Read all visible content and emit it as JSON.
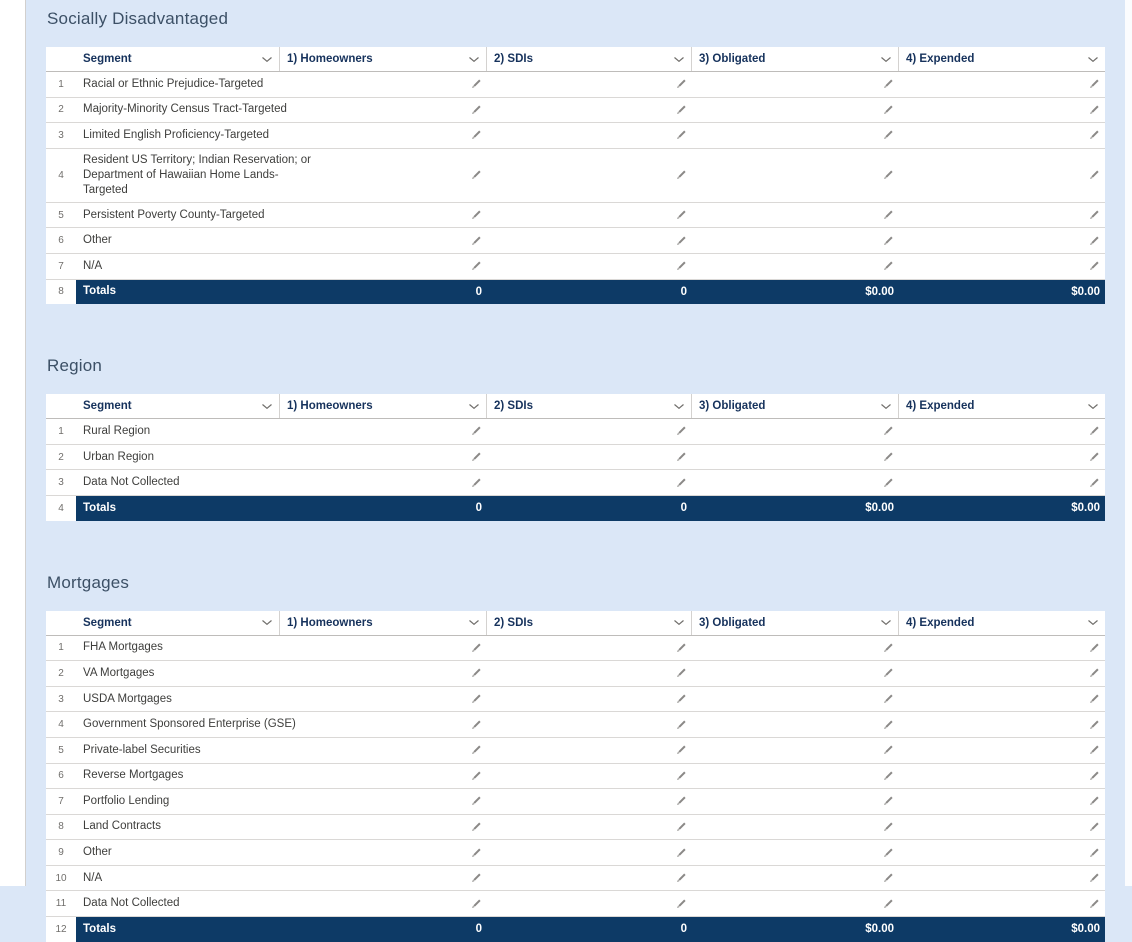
{
  "colors": {
    "page_background": "#dbe7f7",
    "totals_row_background": "#0d3a66",
    "header_text": "#16325c",
    "body_text": "#3e3e3c",
    "muted_text": "#706e6b"
  },
  "columns": [
    "Segment",
    "1) Homeowners",
    "2) SDIs",
    "3) Obligated",
    "4) Expended"
  ],
  "icons": {
    "column_menu": "chevron-down-icon",
    "cell_edit": "edit-pencil-icon"
  },
  "sections": [
    {
      "title": "Socially Disadvantaged",
      "rows": [
        {
          "num": "1",
          "label": "Racial or Ethnic Prejudice-Targeted"
        },
        {
          "num": "2",
          "label": "Majority-Minority Census Tract-Targeted"
        },
        {
          "num": "3",
          "label": "Limited English Proficiency-Targeted"
        },
        {
          "num": "4",
          "label": "Resident US Territory; Indian Reservation; or Department of Hawaiian Home Lands-Targeted"
        },
        {
          "num": "5",
          "label": "Persistent Poverty County-Targeted"
        },
        {
          "num": "6",
          "label": "Other"
        },
        {
          "num": "7",
          "label": "N/A"
        }
      ],
      "totals": {
        "num": "8",
        "label": "Totals",
        "values": [
          "0",
          "0",
          "$0.00",
          "$0.00"
        ]
      }
    },
    {
      "title": "Region",
      "rows": [
        {
          "num": "1",
          "label": "Rural Region"
        },
        {
          "num": "2",
          "label": "Urban Region"
        },
        {
          "num": "3",
          "label": "Data Not Collected"
        }
      ],
      "totals": {
        "num": "4",
        "label": "Totals",
        "values": [
          "0",
          "0",
          "$0.00",
          "$0.00"
        ]
      }
    },
    {
      "title": "Mortgages",
      "rows": [
        {
          "num": "1",
          "label": "FHA Mortgages"
        },
        {
          "num": "2",
          "label": "VA Mortgages"
        },
        {
          "num": "3",
          "label": "USDA Mortgages"
        },
        {
          "num": "4",
          "label": "Government Sponsored Enterprise (GSE)"
        },
        {
          "num": "5",
          "label": "Private-label Securities"
        },
        {
          "num": "6",
          "label": "Reverse Mortgages"
        },
        {
          "num": "7",
          "label": "Portfolio Lending"
        },
        {
          "num": "8",
          "label": "Land Contracts"
        },
        {
          "num": "9",
          "label": "Other"
        },
        {
          "num": "10",
          "label": "N/A"
        },
        {
          "num": "11",
          "label": "Data Not Collected"
        }
      ],
      "totals": {
        "num": "12",
        "label": "Totals",
        "values": [
          "0",
          "0",
          "$0.00",
          "$0.00"
        ]
      }
    }
  ]
}
